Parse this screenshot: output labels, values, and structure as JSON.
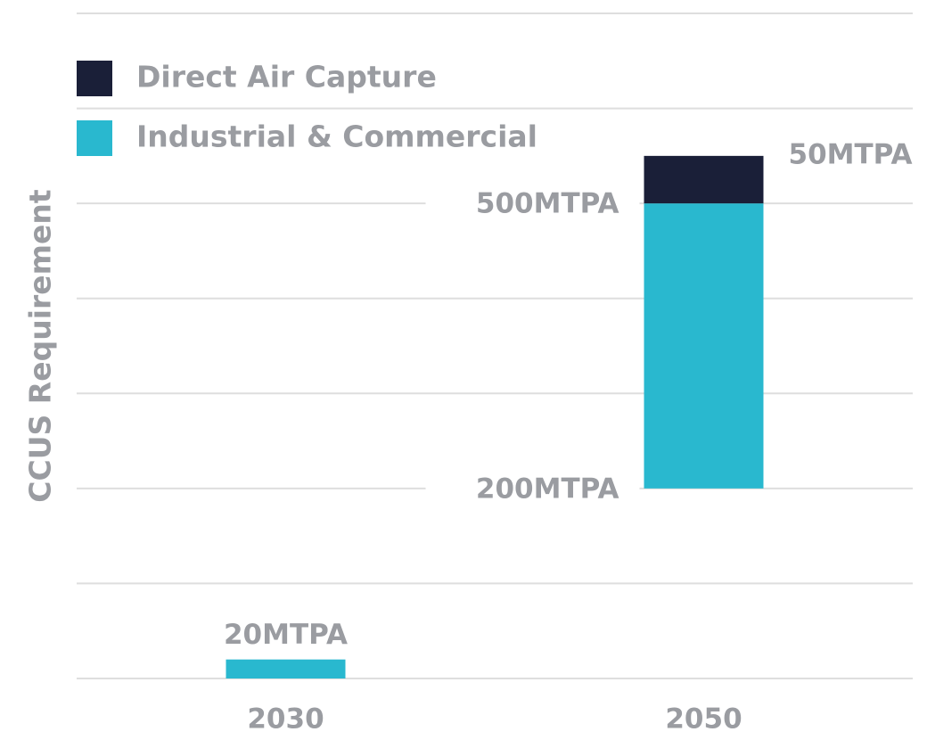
{
  "chart_data": {
    "type": "bar",
    "stacked": true,
    "y_label": "CCUS Requirement",
    "categories": [
      "2030",
      "2050"
    ],
    "series": [
      {
        "name": "Industrial & Commercial",
        "color": "#29b8cf",
        "base": [
          0,
          200
        ],
        "base_labels": [
          null,
          "200MTPA"
        ],
        "values": [
          20,
          500
        ],
        "value_labels": [
          "20MTPA",
          "500MTPA"
        ]
      },
      {
        "name": "Direct Air Capture",
        "color": "#1a1f38",
        "values": [
          null,
          50
        ],
        "value_labels": [
          null,
          "50MTPA"
        ]
      }
    ],
    "ylim": [
      0,
      700
    ],
    "yticks": [
      0,
      100,
      200,
      300,
      400,
      500,
      600,
      700
    ],
    "grid": true
  }
}
